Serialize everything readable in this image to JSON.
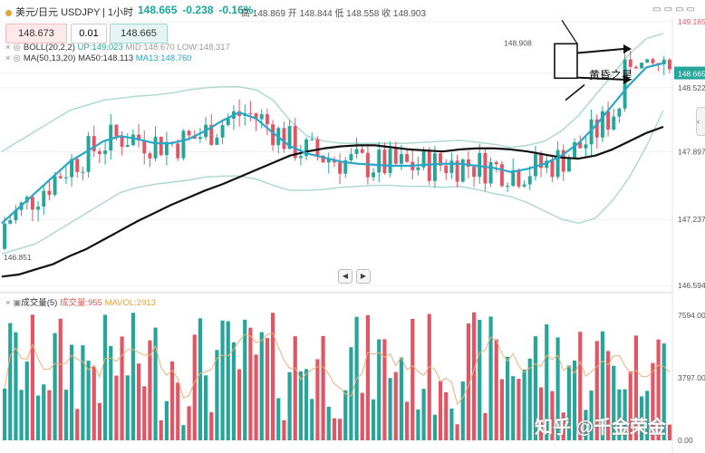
{
  "header": {
    "symbol": "美元/日元 USDJPY",
    "separator": "|",
    "timeframe": "1小时",
    "price": "148.665",
    "change": "-0.238",
    "change_pct": "-0.16%",
    "ohlc": "高 148.869 开 148.844 低 148.558 收 148.903"
  },
  "order": {
    "sell": "148.673",
    "qty": "0.01",
    "buy": "148.665"
  },
  "legend": {
    "boll_label": "BOLL(20,2,2)",
    "boll_up": "UP:149.023",
    "boll_mid": "MID:148.670",
    "boll_low": "LOW:148.317",
    "ma_label": "MA(50,13,20)",
    "ma50": "MA50:148.113",
    "ma13": "MA13:148.760"
  },
  "volume_legend": {
    "label": "成交量(5)",
    "vol": "成交量:955",
    "mavol": "MAVOL:2913"
  },
  "annotation": "黄昏之星",
  "watermark": "知乎 @千金荣金",
  "colors": {
    "up": "#26a69a",
    "down": "#e05665",
    "ma13": "#2aa6c6",
    "ma50": "#111111",
    "boll": "#a9d7cf",
    "axis_text": "#555555"
  },
  "chart_data": [
    {
      "type": "candlestick",
      "title": "",
      "y_axis": {
        "ticks": [
          149.165,
          148.665,
          148.522,
          147.897,
          147.237,
          146.594
        ],
        "highlight": "148.665",
        "range": [
          146.55,
          149.2
        ]
      },
      "labels": {
        "high": "148.908",
        "low": "146.851"
      },
      "series": [
        {
          "name": "MA50",
          "values": [
            146.68,
            146.7,
            146.75,
            146.8,
            146.88,
            146.95,
            147.04,
            147.13,
            147.22,
            147.3,
            147.38,
            147.45,
            147.52,
            147.58,
            147.65,
            147.72,
            147.79,
            147.86,
            147.9,
            147.93,
            147.95,
            147.96,
            147.96,
            147.94,
            147.92,
            147.91,
            147.9,
            147.92,
            147.93,
            147.93,
            147.92,
            147.9,
            147.87,
            147.84,
            147.83,
            147.86,
            147.92,
            148.0,
            148.08,
            148.14
          ]
        },
        {
          "name": "MA13",
          "values": [
            147.2,
            147.35,
            147.5,
            147.65,
            147.8,
            147.9,
            148.0,
            148.05,
            148.02,
            147.98,
            147.98,
            148.02,
            148.1,
            148.2,
            148.28,
            148.22,
            148.08,
            147.95,
            147.88,
            147.84,
            147.8,
            147.78,
            147.77,
            147.76,
            147.76,
            147.77,
            147.78,
            147.78,
            147.76,
            147.74,
            147.7,
            147.73,
            147.78,
            147.86,
            147.98,
            148.15,
            148.35,
            148.55,
            148.72,
            148.76
          ]
        },
        {
          "name": "BOLL UP",
          "values": [
            147.9,
            148.0,
            148.1,
            148.2,
            148.3,
            148.35,
            148.4,
            148.42,
            148.44,
            148.45,
            148.47,
            148.5,
            148.52,
            148.53,
            148.53,
            148.5,
            148.4,
            148.2,
            148.05,
            148.0,
            147.98,
            147.98,
            147.98,
            147.98,
            147.98,
            147.99,
            148.0,
            148.01,
            147.99,
            147.97,
            147.94,
            147.96,
            148.0,
            148.1,
            148.25,
            148.45,
            148.65,
            148.85,
            149.0,
            149.05
          ]
        },
        {
          "name": "BOLL LOW",
          "values": [
            146.9,
            146.95,
            147.0,
            147.1,
            147.2,
            147.3,
            147.4,
            147.5,
            147.55,
            147.58,
            147.6,
            147.62,
            147.65,
            147.66,
            147.66,
            147.63,
            147.57,
            147.52,
            147.52,
            147.53,
            147.55,
            147.56,
            147.57,
            147.57,
            147.56,
            147.56,
            147.55,
            147.56,
            147.53,
            147.49,
            147.46,
            147.4,
            147.32,
            147.24,
            147.2,
            147.25,
            147.42,
            147.65,
            147.95,
            148.3
          ]
        }
      ]
    },
    {
      "type": "bar",
      "title": "",
      "y_axis": {
        "ticks": [
          7594.0,
          3797.0,
          0.0
        ],
        "range": [
          0,
          8200
        ]
      },
      "series": [
        {
          "name": "成交量",
          "values": []
        },
        {
          "name": "MAVOL",
          "values": []
        }
      ]
    }
  ]
}
